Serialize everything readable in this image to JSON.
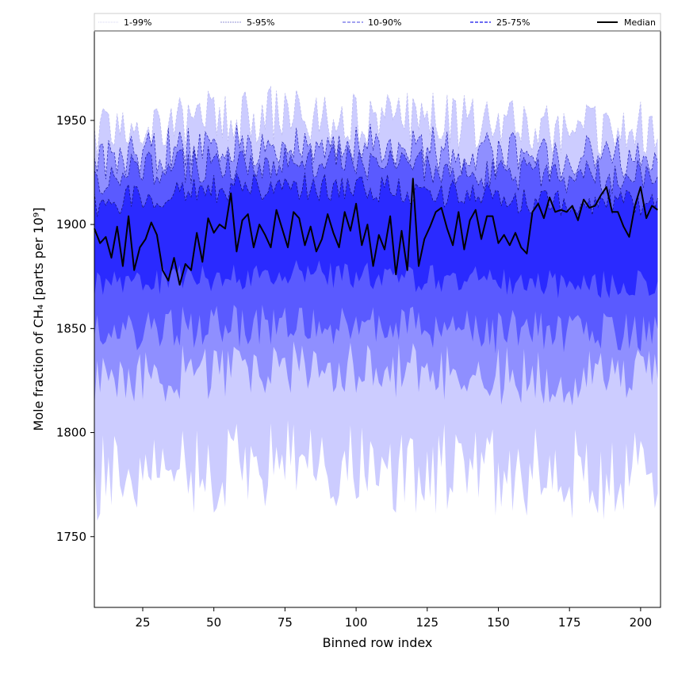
{
  "chart_data": {
    "type": "area",
    "xlabel": "Binned row index",
    "ylabel": "Mole fraction of CH₄ [parts per 10⁹]",
    "xlim": [
      8,
      207
    ],
    "ylim": [
      1716,
      1993
    ],
    "x_ticks": [
      25,
      50,
      75,
      100,
      125,
      150,
      175,
      200
    ],
    "y_ticks": [
      1750,
      1800,
      1850,
      1900,
      1950
    ],
    "x_range": [
      8,
      206
    ],
    "legend_position": "top (single row above plot)",
    "legend": [
      {
        "key": "p1_99",
        "label": "1-99%"
      },
      {
        "key": "p5_95",
        "label": "5-95%"
      },
      {
        "key": "p10_90",
        "label": "10-90%"
      },
      {
        "key": "p25_75",
        "label": "25-75%"
      },
      {
        "key": "median",
        "label": "Median"
      }
    ],
    "bands": [
      {
        "key": "p1_99",
        "name": "1-99%",
        "fill": "#ccccff",
        "line": "#b8b8ee",
        "upper_base": 1940,
        "upper_jitter": 14,
        "lower_base": 1786,
        "lower_jitter": 22
      },
      {
        "key": "p5_95",
        "name": "5-95%",
        "fill": "#8f8fff",
        "line": "#2222aa",
        "upper_base": 1928,
        "upper_jitter": 11,
        "lower_base": 1830,
        "lower_jitter": 14
      },
      {
        "key": "p10_90",
        "name": "10-90%",
        "fill": "#5a5aff",
        "line": "#1a1a8a",
        "upper_base": 1920,
        "upper_jitter": 9,
        "lower_base": 1850,
        "lower_jitter": 11
      },
      {
        "key": "p25_75",
        "name": "25-75%",
        "fill": "#2a2aff",
        "line": "#101070",
        "upper_base": 1908,
        "upper_jitter": 7,
        "lower_base": 1873,
        "lower_jitter": 7
      }
    ],
    "median_series": {
      "name": "Median",
      "color": "#000000",
      "x": [
        8,
        10,
        12,
        14,
        16,
        18,
        20,
        22,
        24,
        26,
        28,
        30,
        32,
        34,
        36,
        38,
        40,
        42,
        44,
        46,
        48,
        50,
        52,
        54,
        56,
        58,
        60,
        62,
        64,
        66,
        68,
        70,
        72,
        74,
        76,
        78,
        80,
        82,
        84,
        86,
        88,
        90,
        92,
        94,
        96,
        98,
        100,
        102,
        104,
        106,
        108,
        110,
        112,
        114,
        116,
        118,
        120,
        122,
        124,
        126,
        128,
        130,
        132,
        134,
        136,
        138,
        140,
        142,
        144,
        146,
        148,
        150,
        152,
        154,
        156,
        158,
        160,
        162,
        164,
        166,
        168,
        170,
        172,
        174,
        176,
        178,
        180,
        182,
        184,
        186,
        188,
        190,
        192,
        194,
        196,
        198,
        200,
        202,
        204,
        206
      ],
      "y": [
        1898,
        1891,
        1894,
        1884,
        1899,
        1880,
        1904,
        1878,
        1889,
        1893,
        1901,
        1895,
        1878,
        1873,
        1884,
        1871,
        1881,
        1878,
        1896,
        1882,
        1903,
        1896,
        1900,
        1898,
        1915,
        1887,
        1902,
        1905,
        1889,
        1900,
        1895,
        1889,
        1907,
        1898,
        1889,
        1906,
        1903,
        1890,
        1899,
        1887,
        1893,
        1905,
        1896,
        1889,
        1906,
        1897,
        1910,
        1890,
        1900,
        1880,
        1895,
        1888,
        1904,
        1876,
        1897,
        1878,
        1922,
        1880,
        1893,
        1899,
        1906,
        1908,
        1898,
        1890,
        1906,
        1888,
        1902,
        1907,
        1893,
        1904,
        1904,
        1891,
        1895,
        1890,
        1896,
        1889,
        1886,
        1906,
        1910,
        1903,
        1913,
        1906,
        1907,
        1906,
        1909,
        1902,
        1912,
        1908,
        1909,
        1914,
        1918,
        1906,
        1906,
        1899,
        1894,
        1909,
        1918,
        1903,
        1909,
        1907
      ]
    }
  }
}
